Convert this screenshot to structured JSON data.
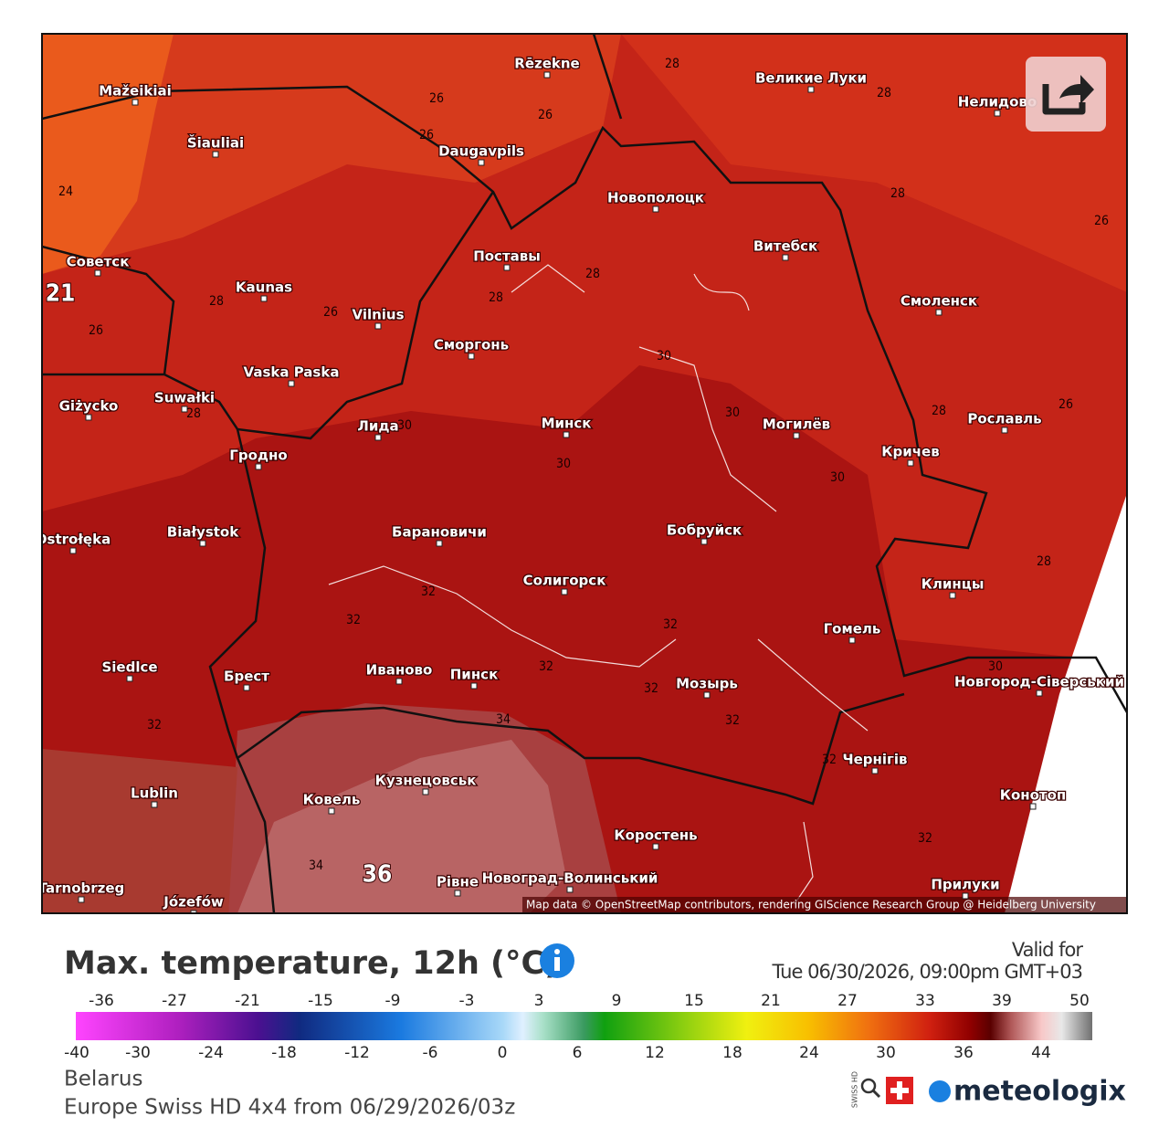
{
  "map": {
    "cities": [
      "Rēzekne",
      "Великие Луки",
      "Mažeikiai",
      "Šiauliai",
      "Daugavpils",
      "Нелидово",
      "Новополоцк",
      "Витебск",
      "Советск",
      "Поставы",
      "Kaunas",
      "Vilnius",
      "Смоленск",
      "Сморгонь",
      "Vaska Paska",
      "Giżycko",
      "Suwałki",
      "Лида",
      "Минск",
      "Могилёв",
      "Рославль",
      "Кричев",
      "Гродно",
      "Białystok",
      "Ostrołęka",
      "Барановичи",
      "Бобруйск",
      "Солигорск",
      "Клинцы",
      "Гомель",
      "Siedlce",
      "Брест",
      "Иваново",
      "Пинск",
      "Мозырь",
      "Новгород-Сіверський",
      "Чернігів",
      "Lublin",
      "Кузнецовськ",
      "Ковель",
      "Конотоп",
      "Коростень",
      "Tarnobrzeg",
      "Józefów",
      "Рівне",
      "Новоград-Волинський",
      "Прилуки"
    ],
    "contour_labels": [
      28,
      26,
      26,
      26,
      28,
      24,
      28,
      26,
      28,
      28,
      28,
      26,
      26,
      21,
      30,
      30,
      28,
      26,
      28,
      30,
      30,
      30,
      28,
      32,
      32,
      32,
      32,
      32,
      32,
      34,
      32,
      30,
      32,
      32,
      34,
      36
    ],
    "attribution": "Map data © OpenStreetMap contributors, rendering GIScience Research Group @ Heidelberg University"
  },
  "legend": {
    "title": "Max. temperature, 12h (°C)",
    "valid_label": "Valid for",
    "valid_time": "Tue 06/30/2026, 09:00pm GMT+03",
    "top_ticks": [
      -36,
      -27,
      -21,
      -15,
      -9,
      -3,
      3,
      9,
      15,
      21,
      27,
      33,
      39,
      50
    ],
    "bottom_ticks": [
      -40,
      -30,
      -24,
      -18,
      -12,
      -6,
      0,
      6,
      12,
      18,
      24,
      30,
      36,
      44
    ]
  },
  "footer": {
    "region": "Belarus",
    "model": "Europe Swiss HD 4x4 from 06/29/2026/03z",
    "badge": "SWISS HD",
    "brand": "meteologix"
  }
}
